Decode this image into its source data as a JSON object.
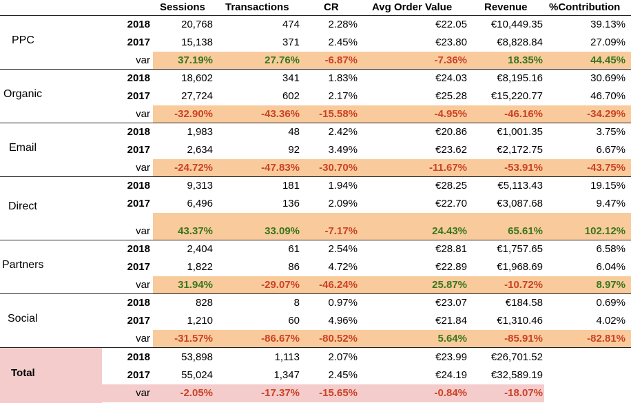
{
  "headers": [
    "Sessions",
    "Transactions",
    "CR",
    "Avg Order Value",
    "Revenue",
    "%Contribution"
  ],
  "channels": [
    {
      "name": "PPC",
      "rows": [
        {
          "label": "2018",
          "values": [
            "20,768",
            "474",
            "2.28%",
            "€22.05",
            "€10,449.35",
            "39.13%"
          ]
        },
        {
          "label": "2017",
          "values": [
            "15,138",
            "371",
            "2.45%",
            "€23.80",
            "€8,828.84",
            "27.09%"
          ]
        },
        {
          "label": "var",
          "values": [
            "37.19%",
            "27.76%",
            "-6.87%",
            "-7.36%",
            "18.35%",
            "44.45%"
          ],
          "signs": [
            "pos",
            "pos",
            "neg",
            "neg",
            "pos",
            "pos"
          ]
        }
      ]
    },
    {
      "name": "Organic",
      "rows": [
        {
          "label": "2018",
          "values": [
            "18,602",
            "341",
            "1.83%",
            "€24.03",
            "€8,195.16",
            "30.69%"
          ]
        },
        {
          "label": "2017",
          "values": [
            "27,724",
            "602",
            "2.17%",
            "€25.28",
            "€15,220.77",
            "46.70%"
          ]
        },
        {
          "label": "var",
          "values": [
            "-32.90%",
            "-43.36%",
            "-15.58%",
            "-4.95%",
            "-46.16%",
            "-34.29%"
          ],
          "signs": [
            "neg",
            "neg",
            "neg",
            "neg",
            "neg",
            "neg"
          ]
        }
      ]
    },
    {
      "name": "Email",
      "rows": [
        {
          "label": "2018",
          "values": [
            "1,983",
            "48",
            "2.42%",
            "€20.86",
            "€1,001.35",
            "3.75%"
          ]
        },
        {
          "label": "2017",
          "values": [
            "2,634",
            "92",
            "3.49%",
            "€23.62",
            "€2,172.75",
            "6.67%"
          ]
        },
        {
          "label": "var",
          "values": [
            "-24.72%",
            "-47.83%",
            "-30.70%",
            "-11.67%",
            "-53.91%",
            "-43.75%"
          ],
          "signs": [
            "neg",
            "neg",
            "neg",
            "neg",
            "neg",
            "neg"
          ]
        }
      ]
    },
    {
      "name": "Direct",
      "rows": [
        {
          "label": "2018",
          "values": [
            "9,313",
            "181",
            "1.94%",
            "€28.25",
            "€5,113.43",
            "19.15%"
          ]
        },
        {
          "label": "2017",
          "values": [
            "6,496",
            "136",
            "2.09%",
            "€22.70",
            "€3,087.68",
            "9.47%"
          ]
        },
        {
          "label": "var",
          "values": [
            "43.37%",
            "33.09%",
            "-7.17%",
            "24.43%",
            "65.61%",
            "102.12%"
          ],
          "signs": [
            "pos",
            "pos",
            "neg",
            "pos",
            "pos",
            "pos"
          ]
        }
      ]
    },
    {
      "name": "Partners",
      "rows": [
        {
          "label": "2018",
          "values": [
            "2,404",
            "61",
            "2.54%",
            "€28.81",
            "€1,757.65",
            "6.58%"
          ]
        },
        {
          "label": "2017",
          "values": [
            "1,822",
            "86",
            "4.72%",
            "€22.89",
            "€1,968.69",
            "6.04%"
          ]
        },
        {
          "label": "var",
          "values": [
            "31.94%",
            "-29.07%",
            "-46.24%",
            "25.87%",
            "-10.72%",
            "8.97%"
          ],
          "signs": [
            "pos",
            "neg",
            "neg",
            "pos",
            "neg",
            "pos"
          ]
        }
      ]
    },
    {
      "name": "Social",
      "rows": [
        {
          "label": "2018",
          "values": [
            "828",
            "8",
            "0.97%",
            "€23.07",
            "€184.58",
            "0.69%"
          ]
        },
        {
          "label": "2017",
          "values": [
            "1,210",
            "60",
            "4.96%",
            "€21.84",
            "€1,310.46",
            "4.02%"
          ]
        },
        {
          "label": "var",
          "values": [
            "-31.57%",
            "-86.67%",
            "-80.52%",
            "5.64%",
            "-85.91%",
            "-82.81%"
          ],
          "signs": [
            "neg",
            "neg",
            "neg",
            "pos",
            "neg",
            "neg"
          ]
        }
      ]
    }
  ],
  "total": {
    "name": "Total",
    "rows": [
      {
        "label": "2018",
        "values": [
          "53,898",
          "1,113",
          "2.07%",
          "€23.99",
          "€26,701.52",
          ""
        ]
      },
      {
        "label": "2017",
        "values": [
          "55,024",
          "1,347",
          "2.45%",
          "€24.19",
          "€32,589.19",
          ""
        ]
      },
      {
        "label": "var",
        "values": [
          "-2.05%",
          "-17.37%",
          "-15.65%",
          "-0.84%",
          "-18.07%",
          ""
        ],
        "signs": [
          "neg",
          "neg",
          "neg",
          "neg",
          "neg",
          ""
        ]
      }
    ]
  },
  "colors": {
    "var_bg": "#f9cb9c",
    "total_bg": "#f4cccc",
    "positive": "#38761d",
    "negative": "#cc4125"
  }
}
